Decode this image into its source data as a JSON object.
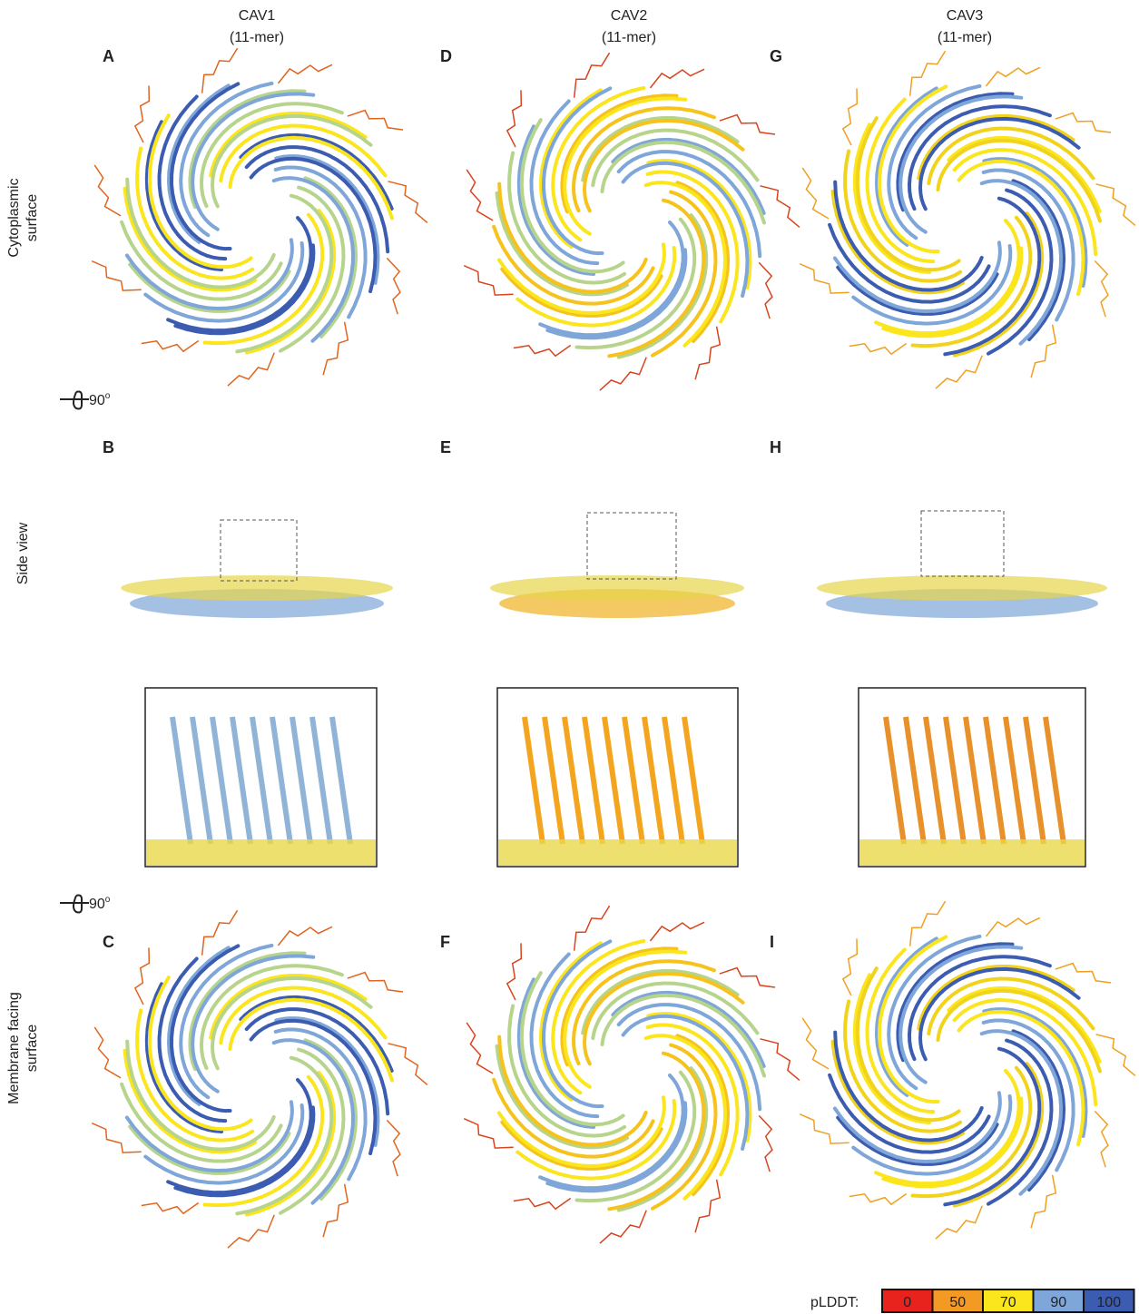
{
  "columns": [
    {
      "name": "CAV1",
      "subtitle": "(11-mer)"
    },
    {
      "name": "CAV2",
      "subtitle": "(11-mer)"
    },
    {
      "name": "CAV3",
      "subtitle": "(11-mer)"
    }
  ],
  "panels": [
    "A",
    "B",
    "C",
    "D",
    "E",
    "F",
    "G",
    "H",
    "I"
  ],
  "row_labels": [
    [
      "Cytoplasmic",
      "surface"
    ],
    [
      "Side view"
    ],
    [
      "Membrane facing",
      "surface"
    ]
  ],
  "rotation": [
    {
      "value": "90",
      "superscript": "o"
    },
    {
      "value": "90",
      "superscript": "o"
    }
  ],
  "legend": {
    "title": "pLDDT:",
    "entries": [
      {
        "label": "0",
        "color": "#e8231d"
      },
      {
        "label": "50",
        "color": "#f39a24"
      },
      {
        "label": "70",
        "color": "#fbe51c"
      },
      {
        "label": "90",
        "color": "#7ea6d8"
      },
      {
        "label": "100",
        "color": "#3b5cb0"
      }
    ]
  }
}
